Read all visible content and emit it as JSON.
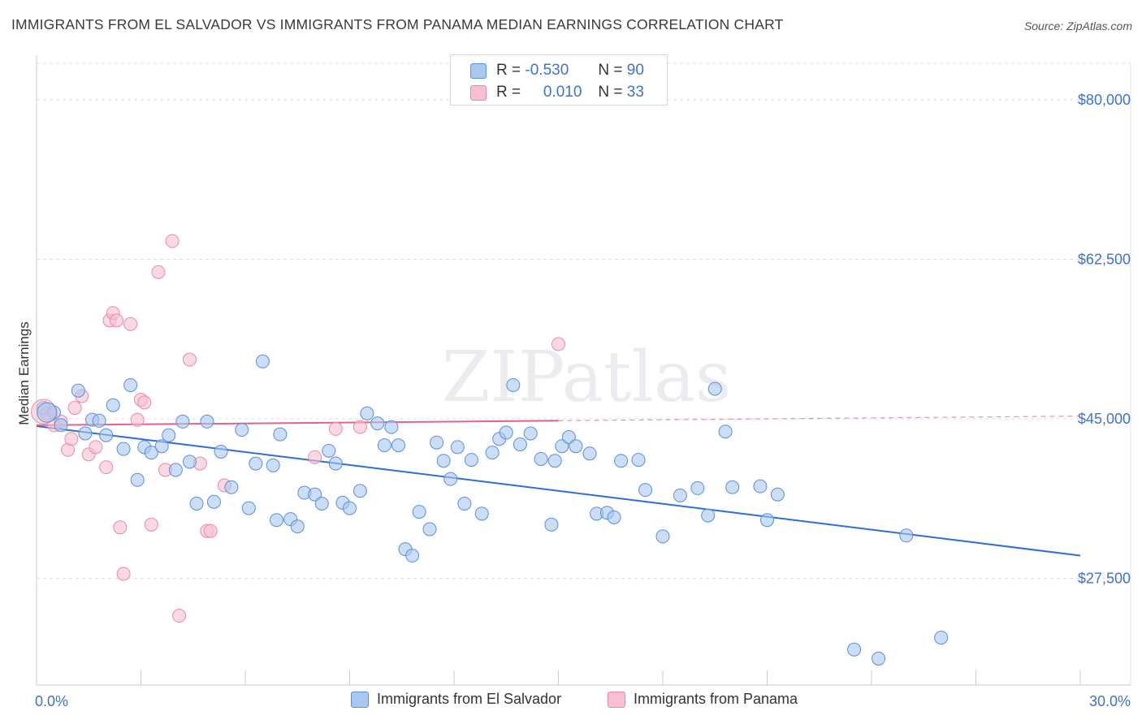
{
  "title": "IMMIGRANTS FROM EL SALVADOR VS IMMIGRANTS FROM PANAMA MEDIAN EARNINGS CORRELATION CHART",
  "source": "Source: ZipAtlas.com",
  "watermark": "ZIPatlas",
  "stats": [
    {
      "r_label": "R =",
      "r_value": "-0.530",
      "n_label": "N =",
      "n_value": "90"
    },
    {
      "r_label": "R =",
      "r_value": "0.010",
      "n_label": "N =",
      "n_value": "33"
    }
  ],
  "chart_data": {
    "type": "scatter",
    "title": "IMMIGRANTS FROM EL SALVADOR VS IMMIGRANTS FROM PANAMA MEDIAN EARNINGS CORRELATION CHART",
    "xlabel": "",
    "ylabel": "Median Earnings",
    "xlim": [
      0,
      30
    ],
    "ylim": [
      15800,
      84000
    ],
    "x_tick_labels": [
      "0.0%",
      "30.0%"
    ],
    "y_ticks": [
      27500,
      45000,
      62500,
      80000
    ],
    "y_tick_labels": [
      "$27,500",
      "$45,000",
      "$62,500",
      "$80,000"
    ],
    "grid": true,
    "legend_position": "bottom",
    "colors": {
      "el_salvador_fill": "#a9c8f0",
      "el_salvador_stroke": "#5b8fd6",
      "el_salvador_line": "#2f6fd0",
      "panama_fill": "#f7c0d0",
      "panama_stroke": "#e88aa6",
      "panama_line": "#e0648a",
      "axis_text": "#3f73c8"
    },
    "series": [
      {
        "name": "Immigrants from El Salvador",
        "trend": {
          "x0": 0,
          "y0": 44200,
          "x1": 30,
          "y1": 30000
        },
        "points": [
          [
            0.2,
            46200
          ],
          [
            0.5,
            45700
          ],
          [
            0.7,
            44300
          ],
          [
            1.2,
            48100
          ],
          [
            1.4,
            43400
          ],
          [
            1.6,
            44900
          ],
          [
            1.8,
            44800
          ],
          [
            2.0,
            43200
          ],
          [
            2.2,
            46500
          ],
          [
            2.5,
            41700
          ],
          [
            2.7,
            48700
          ],
          [
            2.9,
            38300
          ],
          [
            3.1,
            41900
          ],
          [
            3.3,
            41300
          ],
          [
            3.6,
            42000
          ],
          [
            3.8,
            43200
          ],
          [
            4.0,
            39400
          ],
          [
            4.2,
            44700
          ],
          [
            4.4,
            40300
          ],
          [
            4.6,
            35700
          ],
          [
            4.9,
            44700
          ],
          [
            5.1,
            35900
          ],
          [
            5.3,
            41400
          ],
          [
            5.6,
            37500
          ],
          [
            5.9,
            43800
          ],
          [
            6.1,
            35200
          ],
          [
            6.3,
            40100
          ],
          [
            6.5,
            51300
          ],
          [
            6.8,
            39900
          ],
          [
            6.9,
            33900
          ],
          [
            7.0,
            43300
          ],
          [
            7.3,
            34000
          ],
          [
            7.5,
            33200
          ],
          [
            7.7,
            36900
          ],
          [
            8.0,
            36700
          ],
          [
            8.2,
            35700
          ],
          [
            8.4,
            41500
          ],
          [
            8.6,
            40100
          ],
          [
            8.8,
            35800
          ],
          [
            9.0,
            35200
          ],
          [
            9.3,
            37100
          ],
          [
            9.5,
            45600
          ],
          [
            9.8,
            44500
          ],
          [
            10.0,
            42100
          ],
          [
            10.2,
            44100
          ],
          [
            10.4,
            42100
          ],
          [
            10.6,
            30700
          ],
          [
            10.8,
            30000
          ],
          [
            11.0,
            34800
          ],
          [
            11.3,
            32900
          ],
          [
            11.5,
            42400
          ],
          [
            11.7,
            40400
          ],
          [
            11.9,
            38400
          ],
          [
            12.1,
            41900
          ],
          [
            12.3,
            35700
          ],
          [
            12.5,
            40500
          ],
          [
            12.8,
            34600
          ],
          [
            13.1,
            41300
          ],
          [
            13.3,
            42800
          ],
          [
            13.5,
            43500
          ],
          [
            13.7,
            48700
          ],
          [
            13.9,
            42200
          ],
          [
            14.2,
            43400
          ],
          [
            14.5,
            40600
          ],
          [
            14.8,
            33400
          ],
          [
            15.1,
            42000
          ],
          [
            15.3,
            43000
          ],
          [
            15.5,
            42000
          ],
          [
            15.9,
            41200
          ],
          [
            16.1,
            34600
          ],
          [
            16.4,
            34700
          ],
          [
            16.6,
            34200
          ],
          [
            16.8,
            40400
          ],
          [
            17.3,
            40500
          ],
          [
            17.5,
            37200
          ],
          [
            18.0,
            32100
          ],
          [
            18.5,
            36600
          ],
          [
            19.0,
            37400
          ],
          [
            19.3,
            34400
          ],
          [
            19.5,
            48300
          ],
          [
            19.8,
            43600
          ],
          [
            20.0,
            37500
          ],
          [
            21.0,
            33900
          ],
          [
            21.3,
            36700
          ],
          [
            23.5,
            19700
          ],
          [
            24.2,
            18700
          ],
          [
            25.0,
            32200
          ],
          [
            26.0,
            21000
          ],
          [
            14.9,
            40400
          ],
          [
            20.8,
            37600
          ]
        ]
      },
      {
        "name": "Immigrants from Panama",
        "trend": {
          "x0": 0,
          "y0": 44300,
          "x1": 15,
          "y1": 44800,
          "x1_dashed": 30,
          "y1_dashed": 45300
        },
        "points": [
          [
            0.3,
            45600
          ],
          [
            0.5,
            44300
          ],
          [
            0.7,
            44700
          ],
          [
            0.9,
            41600
          ],
          [
            1.0,
            42800
          ],
          [
            1.1,
            46200
          ],
          [
            1.3,
            47500
          ],
          [
            1.5,
            41100
          ],
          [
            1.7,
            41900
          ],
          [
            2.0,
            39700
          ],
          [
            2.1,
            55800
          ],
          [
            2.2,
            56600
          ],
          [
            2.3,
            55800
          ],
          [
            2.4,
            33100
          ],
          [
            2.5,
            28000
          ],
          [
            2.7,
            55400
          ],
          [
            2.9,
            44900
          ],
          [
            3.0,
            47100
          ],
          [
            3.1,
            46800
          ],
          [
            3.3,
            33400
          ],
          [
            3.5,
            61100
          ],
          [
            3.7,
            39400
          ],
          [
            3.9,
            64500
          ],
          [
            4.1,
            23400
          ],
          [
            4.4,
            51500
          ],
          [
            4.7,
            40100
          ],
          [
            4.9,
            32700
          ],
          [
            5.0,
            32700
          ],
          [
            5.4,
            37700
          ],
          [
            8.0,
            40800
          ],
          [
            8.6,
            43900
          ],
          [
            9.3,
            44100
          ],
          [
            15.0,
            53200
          ]
        ]
      }
    ]
  },
  "legend": {
    "items": [
      {
        "label": "Immigrants from El Salvador"
      },
      {
        "label": "Immigrants from Panama"
      }
    ]
  }
}
